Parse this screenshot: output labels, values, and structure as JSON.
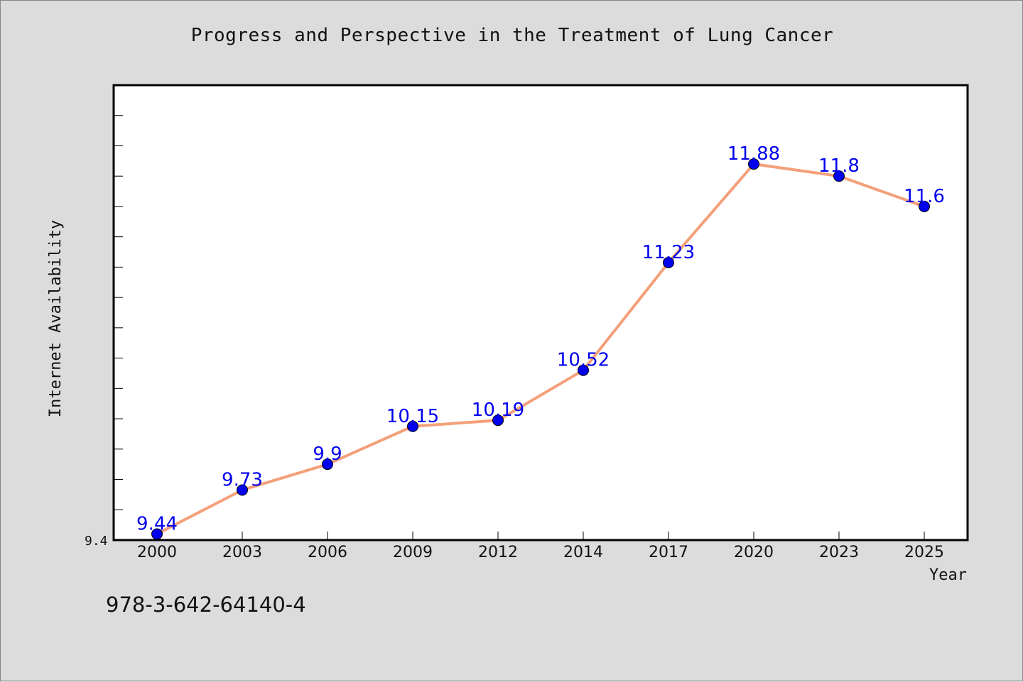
{
  "chart_data": {
    "type": "line",
    "title": "Progress and Perspective in the Treatment of Lung Cancer",
    "xlabel": "Year",
    "ylabel": "Internet Availability",
    "categories": [
      "2000",
      "2003",
      "2006",
      "2009",
      "2012",
      "2014",
      "2017",
      "2020",
      "2023",
      "2025"
    ],
    "series": [
      {
        "values": [
          9.44,
          9.73,
          9.9,
          10.15,
          10.19,
          10.52,
          11.23,
          11.88,
          11.8,
          11.6
        ],
        "labels": [
          "9.44",
          "9.73",
          "9.9",
          "10.15",
          "10.19",
          "10.52",
          "11.23",
          "11.88",
          "11.8",
          "11.6"
        ],
        "line_color": "#f4a07a",
        "marker_color": "#0000ee"
      }
    ],
    "y_min_label": "9.4",
    "ylim": [
      9.4,
      12.4
    ],
    "grid": false
  },
  "footer": {
    "isbn": "978-3-642-64140-4"
  }
}
